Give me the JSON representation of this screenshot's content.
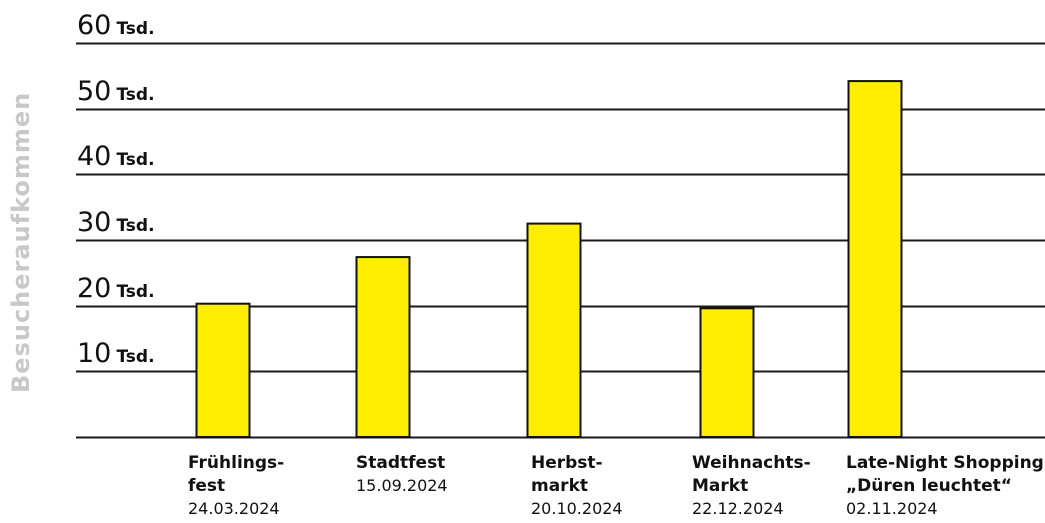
{
  "chart_data": {
    "type": "bar",
    "ylabel": "Besucheraufkommen",
    "ylim": [
      0,
      60000
    ],
    "y_ticks": [
      {
        "value": 60000,
        "num": "60",
        "unit": "Tsd."
      },
      {
        "value": 50000,
        "num": "50",
        "unit": "Tsd."
      },
      {
        "value": 40000,
        "num": "40",
        "unit": "Tsd."
      },
      {
        "value": 30000,
        "num": "30",
        "unit": "Tsd."
      },
      {
        "value": 20000,
        "num": "20",
        "unit": "Tsd."
      },
      {
        "value": 10000,
        "num": "10",
        "unit": "Tsd."
      }
    ],
    "categories": [
      {
        "line1": "Frühlings-",
        "line2": "fest",
        "date": "24.03.2024"
      },
      {
        "line1": "Stadtfest",
        "line2": "",
        "date": "15.09.2024"
      },
      {
        "line1": "Herbst-",
        "line2": "markt",
        "date": "20.10.2024"
      },
      {
        "line1": "Weihnachts-",
        "line2": "Markt",
        "date": "22.12.2024"
      },
      {
        "line1": "Late-Night Shopping",
        "line2": "„Düren leuchtet“",
        "date": "02.11.2024"
      }
    ],
    "values": [
      20300,
      27400,
      32500,
      19600,
      54200
    ],
    "bar_color": "#ffee00",
    "grid": true
  }
}
